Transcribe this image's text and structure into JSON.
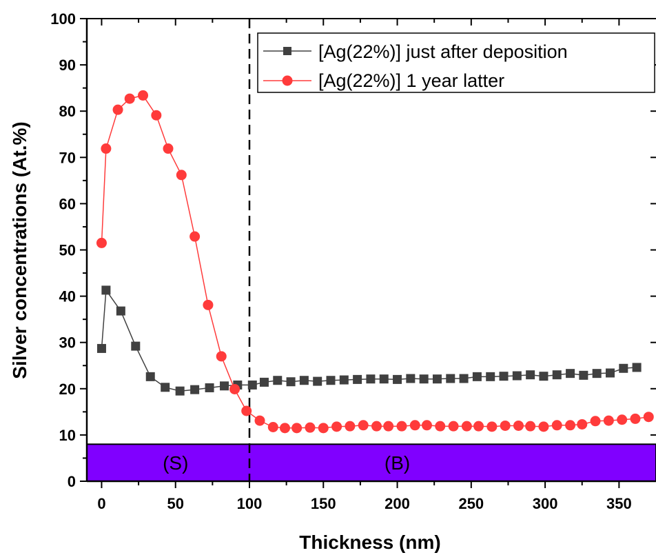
{
  "chart_data": {
    "type": "line",
    "xlabel": "Thickness (nm)",
    "ylabel": "Silver concentrations (At.%)",
    "xlim": [
      -10,
      375
    ],
    "ylim": [
      0,
      100
    ],
    "xticks": [
      "0",
      "50",
      "100",
      "150",
      "200",
      "250",
      "300",
      "350"
    ],
    "yticks": [
      "0",
      "10",
      "20",
      "30",
      "40",
      "50",
      "60",
      "70",
      "80",
      "90",
      "100"
    ],
    "grid": false,
    "legend_position": "top-right",
    "colors": {
      "series1": "#404040",
      "series2": "#ff3b3b",
      "band": "#8000ff"
    },
    "band": {
      "y_range": [
        0,
        8
      ],
      "labels": [
        "(S)",
        "(B)"
      ]
    },
    "divider_x": 100,
    "series": [
      {
        "name": "[Ag(22%)] just after deposition",
        "marker": "square",
        "points": [
          [
            0,
            28.7
          ],
          [
            3,
            41.3
          ],
          [
            13,
            36.8
          ],
          [
            23,
            29.2
          ],
          [
            33,
            22.6
          ],
          [
            43,
            20.3
          ],
          [
            53,
            19.5
          ],
          [
            63,
            19.8
          ],
          [
            73,
            20.2
          ],
          [
            83,
            20.6
          ],
          [
            92,
            20.8
          ],
          [
            102,
            20.8
          ],
          [
            110,
            21.4
          ],
          [
            119,
            21.8
          ],
          [
            128,
            21.5
          ],
          [
            137,
            21.8
          ],
          [
            146,
            21.6
          ],
          [
            155,
            21.8
          ],
          [
            164,
            21.9
          ],
          [
            173,
            22.0
          ],
          [
            182,
            22.1
          ],
          [
            191,
            22.1
          ],
          [
            200,
            22.0
          ],
          [
            209,
            22.2
          ],
          [
            218,
            22.1
          ],
          [
            227,
            22.1
          ],
          [
            236,
            22.2
          ],
          [
            245,
            22.2
          ],
          [
            254,
            22.6
          ],
          [
            263,
            22.6
          ],
          [
            272,
            22.7
          ],
          [
            281,
            22.8
          ],
          [
            290,
            23.0
          ],
          [
            299,
            22.7
          ],
          [
            308,
            23.0
          ],
          [
            317,
            23.3
          ],
          [
            326,
            22.9
          ],
          [
            335,
            23.3
          ],
          [
            344,
            23.4
          ],
          [
            353,
            24.4
          ],
          [
            362,
            24.6
          ]
        ]
      },
      {
        "name": "[Ag(22%)] 1 year latter",
        "marker": "circle",
        "points": [
          [
            0,
            51.5
          ],
          [
            3,
            71.9
          ],
          [
            11,
            80.3
          ],
          [
            19,
            82.7
          ],
          [
            28,
            83.4
          ],
          [
            37,
            79.1
          ],
          [
            45,
            71.9
          ],
          [
            54,
            66.2
          ],
          [
            63,
            52.9
          ],
          [
            72,
            38.1
          ],
          [
            81,
            27.0
          ],
          [
            90,
            19.9
          ],
          [
            98,
            15.2
          ],
          [
            107,
            13.1
          ],
          [
            116,
            11.7
          ],
          [
            124,
            11.5
          ],
          [
            132,
            11.5
          ],
          [
            141,
            11.6
          ],
          [
            150,
            11.5
          ],
          [
            159,
            11.8
          ],
          [
            168,
            11.9
          ],
          [
            177,
            12.1
          ],
          [
            186,
            11.9
          ],
          [
            194,
            11.9
          ],
          [
            203,
            11.9
          ],
          [
            212,
            12.1
          ],
          [
            220,
            12.1
          ],
          [
            229,
            11.9
          ],
          [
            238,
            11.9
          ],
          [
            247,
            11.9
          ],
          [
            255,
            11.9
          ],
          [
            264,
            11.8
          ],
          [
            273,
            12.0
          ],
          [
            282,
            12.0
          ],
          [
            290,
            11.9
          ],
          [
            299,
            11.8
          ],
          [
            308,
            12.1
          ],
          [
            317,
            12.1
          ],
          [
            325,
            12.3
          ],
          [
            334,
            13.0
          ],
          [
            343,
            13.1
          ],
          [
            352,
            13.3
          ],
          [
            361,
            13.5
          ],
          [
            370,
            13.9
          ]
        ]
      }
    ]
  }
}
